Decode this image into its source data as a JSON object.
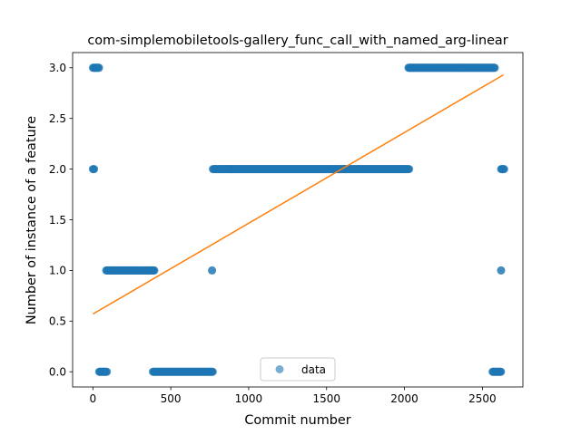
{
  "chart_data": {
    "type": "scatter",
    "title": "com-simplemobiletools-gallery_func_call_with_named_arg-linear",
    "xlabel": "Commit number",
    "ylabel": "Number of instance of a feature",
    "xlim": [
      -130,
      2760
    ],
    "ylim": [
      -0.15,
      3.15
    ],
    "xticks": [
      0,
      500,
      1000,
      1500,
      2000,
      2500
    ],
    "yticks": [
      0.0,
      0.5,
      1.0,
      1.5,
      2.0,
      2.5,
      3.0
    ],
    "xtick_labels": [
      "0",
      "500",
      "1000",
      "1500",
      "2000",
      "2500"
    ],
    "ytick_labels": [
      "0.0",
      "0.5",
      "1.0",
      "1.5",
      "2.0",
      "2.5",
      "3.0"
    ],
    "grid": false,
    "legend": {
      "position": "lower-center",
      "entries": [
        "data"
      ]
    },
    "colors": {
      "data": "#1f77b4",
      "fit": "#ff7f0e"
    },
    "series": [
      {
        "name": "data",
        "style": "markers",
        "segments": [
          {
            "x_start": 0,
            "x_end": 8,
            "y": 2
          },
          {
            "x_start": 0,
            "x_end": 40,
            "y": 3
          },
          {
            "x_start": 40,
            "x_end": 90,
            "y": 0
          },
          {
            "x_start": 85,
            "x_end": 395,
            "y": 1
          },
          {
            "x_start": 385,
            "x_end": 770,
            "y": 0
          },
          {
            "x_start": 765,
            "x_end": 765,
            "y": 1
          },
          {
            "x_start": 770,
            "x_end": 2030,
            "y": 2
          },
          {
            "x_start": 2025,
            "x_end": 2580,
            "y": 3
          },
          {
            "x_start": 2565,
            "x_end": 2620,
            "y": 0
          },
          {
            "x_start": 2620,
            "x_end": 2620,
            "y": 1
          },
          {
            "x_start": 2620,
            "x_end": 2640,
            "y": 2
          }
        ]
      },
      {
        "style": "line",
        "x": [
          0,
          2635
        ],
        "y": [
          0.57,
          2.93
        ]
      }
    ]
  }
}
